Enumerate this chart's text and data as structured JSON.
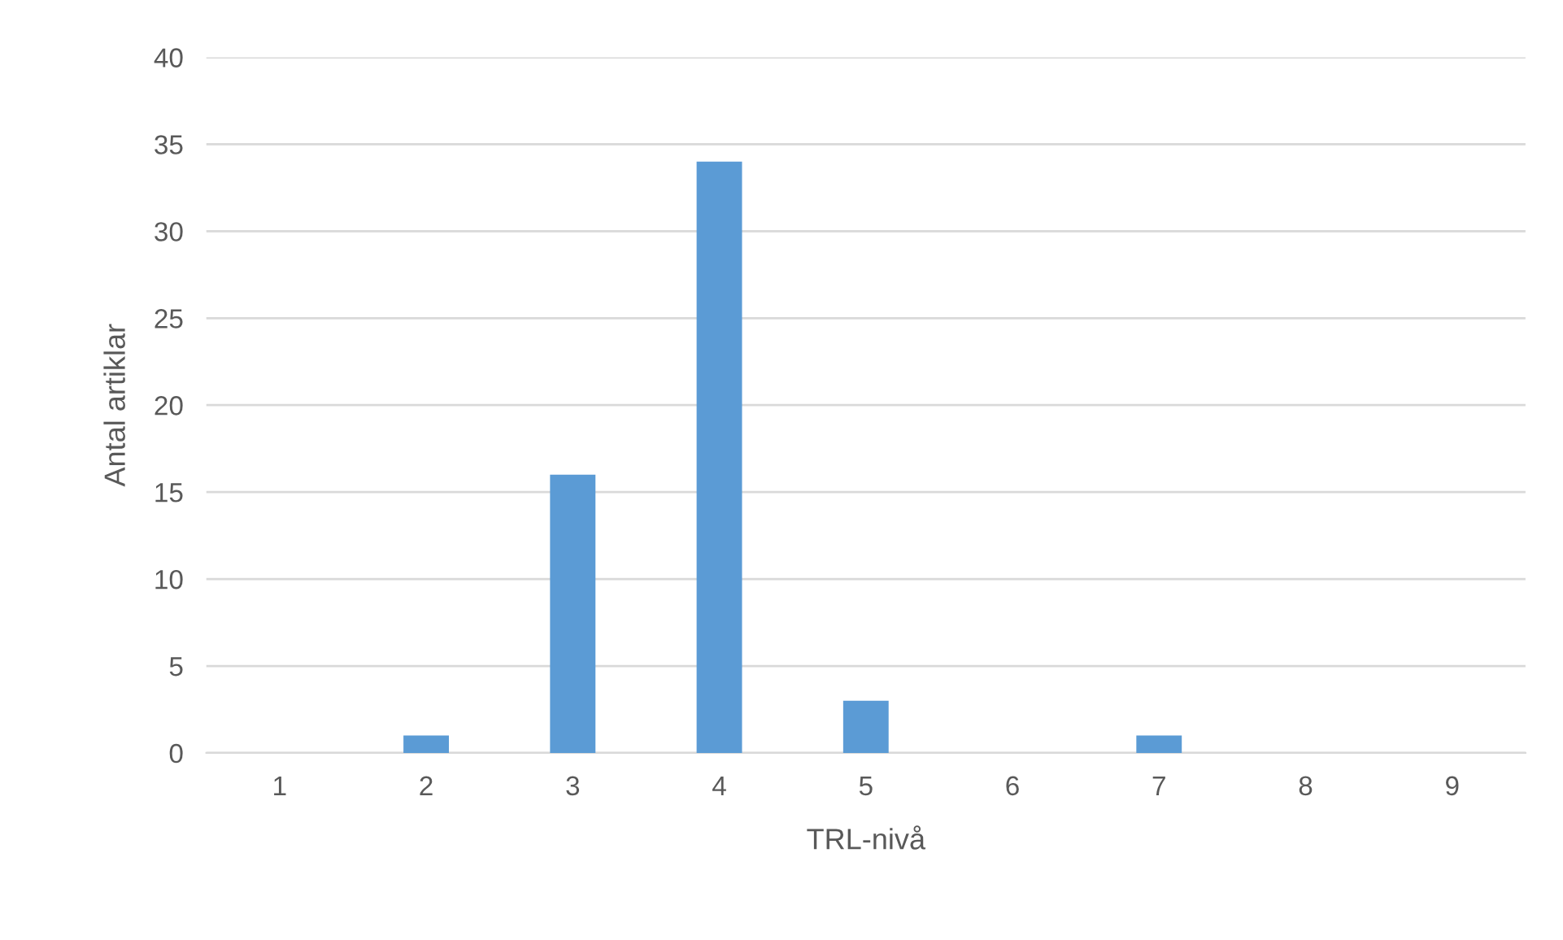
{
  "chart_data": {
    "type": "bar",
    "xlabel": "TRL-nivå",
    "ylabel": "Antal artiklar",
    "categories": [
      "1",
      "2",
      "3",
      "4",
      "5",
      "6",
      "7",
      "8",
      "9"
    ],
    "values": [
      0,
      1,
      16,
      34,
      3,
      0,
      1,
      0,
      0
    ],
    "color": "#5b9bd5",
    "ylim": [
      0,
      40
    ],
    "yticks": [
      0,
      5,
      10,
      15,
      20,
      25,
      30,
      35,
      40
    ],
    "grid": "y"
  }
}
